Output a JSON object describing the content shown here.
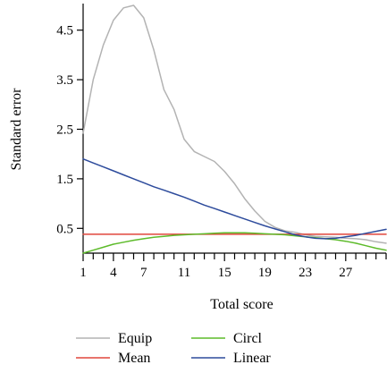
{
  "chart_data": {
    "type": "line",
    "title": "",
    "xlabel": "Total score",
    "ylabel": "Standard error",
    "xlim": [
      1,
      31
    ],
    "ylim": [
      0,
      5
    ],
    "xticks": [
      1,
      4,
      7,
      11,
      15,
      19,
      23,
      27
    ],
    "xtick_labels": [
      "1",
      "4",
      "7",
      "11",
      "15",
      "19",
      "23",
      "27"
    ],
    "yticks": [
      0.5,
      1.5,
      2.5,
      3.5,
      4.5
    ],
    "ytick_labels": [
      "0.5",
      "1.5",
      "2.5",
      "3.5",
      "4.5"
    ],
    "grid": false,
    "legend_position": "bottom",
    "x": [
      1,
      2,
      3,
      4,
      5,
      6,
      7,
      8,
      9,
      10,
      11,
      12,
      13,
      14,
      15,
      16,
      17,
      18,
      19,
      20,
      21,
      22,
      23,
      24,
      25,
      26,
      27,
      28,
      29,
      30,
      31
    ],
    "series": [
      {
        "name": "Equip",
        "color": "#b3b3b3",
        "values": [
          2.42,
          3.5,
          4.2,
          4.7,
          4.95,
          5.0,
          4.75,
          4.1,
          3.3,
          2.9,
          2.3,
          2.05,
          1.95,
          1.85,
          1.65,
          1.4,
          1.1,
          0.85,
          0.64,
          0.52,
          0.45,
          0.42,
          0.37,
          0.34,
          0.33,
          0.32,
          0.3,
          0.29,
          0.27,
          0.23,
          0.2
        ]
      },
      {
        "name": "Mean",
        "color": "#e0463c",
        "values": [
          0.38,
          0.38,
          0.38,
          0.38,
          0.38,
          0.38,
          0.38,
          0.38,
          0.38,
          0.38,
          0.38,
          0.38,
          0.38,
          0.38,
          0.38,
          0.38,
          0.38,
          0.38,
          0.38,
          0.38,
          0.38,
          0.38,
          0.38,
          0.38,
          0.38,
          0.38,
          0.38,
          0.38,
          0.38,
          0.38,
          0.38
        ]
      },
      {
        "name": "Circl",
        "color": "#5dbb2a",
        "values": [
          0.0,
          0.06,
          0.12,
          0.18,
          0.22,
          0.26,
          0.29,
          0.32,
          0.34,
          0.36,
          0.37,
          0.38,
          0.39,
          0.4,
          0.41,
          0.41,
          0.41,
          0.4,
          0.39,
          0.38,
          0.37,
          0.35,
          0.33,
          0.31,
          0.29,
          0.27,
          0.24,
          0.2,
          0.15,
          0.1,
          0.06
        ]
      },
      {
        "name": "Linear",
        "color": "#2d4b9c",
        "values": [
          1.9,
          1.82,
          1.74,
          1.66,
          1.58,
          1.5,
          1.42,
          1.34,
          1.27,
          1.2,
          1.13,
          1.05,
          0.97,
          0.9,
          0.83,
          0.76,
          0.69,
          0.62,
          0.55,
          0.49,
          0.43,
          0.37,
          0.33,
          0.3,
          0.29,
          0.3,
          0.33,
          0.36,
          0.4,
          0.44,
          0.48
        ]
      }
    ]
  },
  "legend_items": [
    {
      "label": "Equip",
      "color": "#b3b3b3"
    },
    {
      "label": "Circl",
      "color": "#5dbb2a"
    },
    {
      "label": "Mean",
      "color": "#e0463c"
    },
    {
      "label": "Linear",
      "color": "#2d4b9c"
    }
  ]
}
